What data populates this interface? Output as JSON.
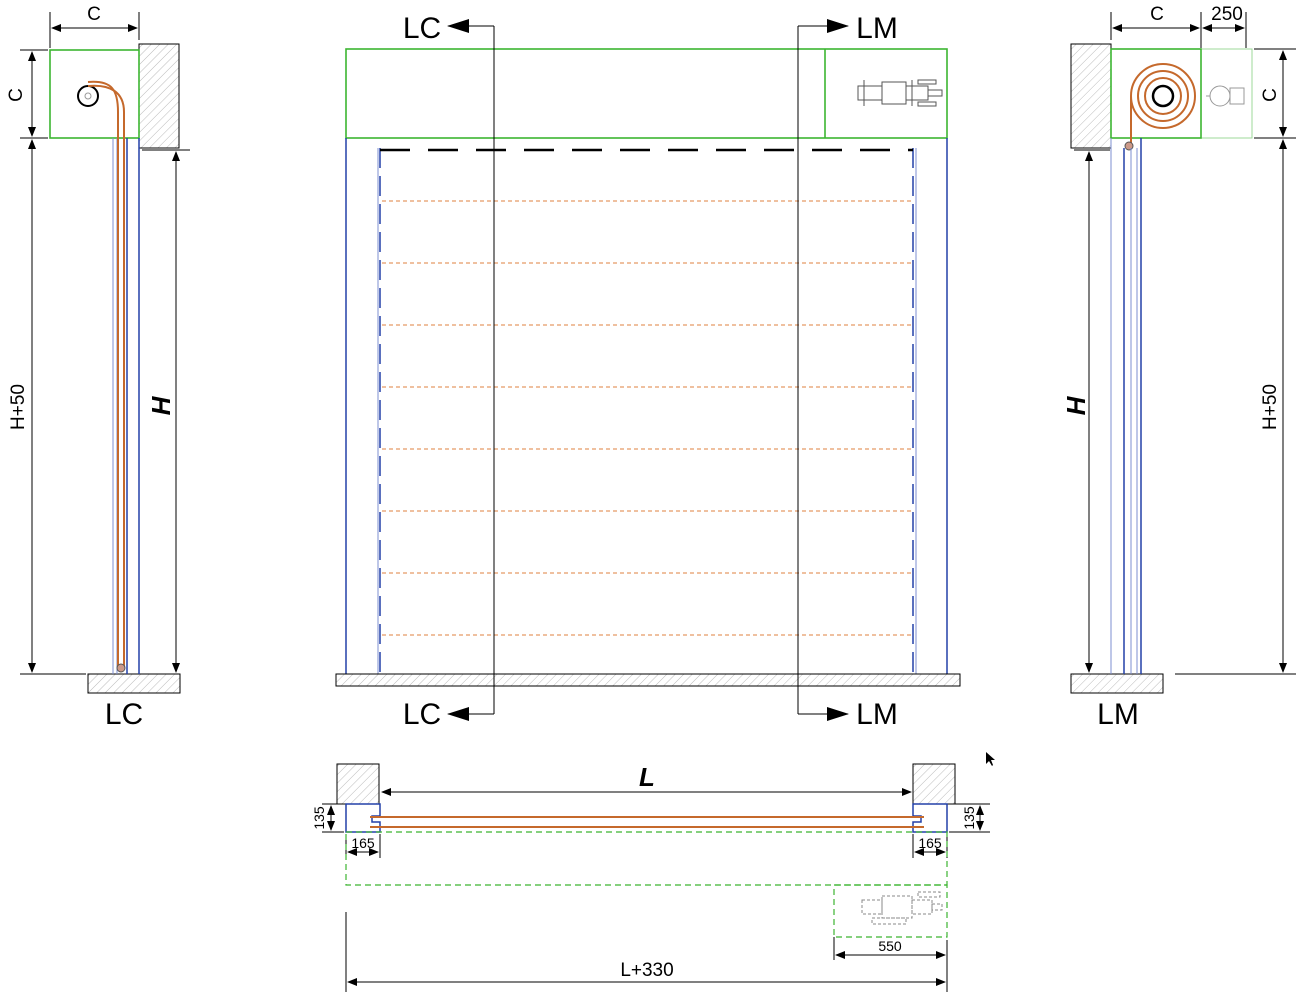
{
  "labels": {
    "section_lc": "LC",
    "section_lm": "LM",
    "dim_c": "C",
    "dim_250": "250",
    "dim_h50": "H+50",
    "dim_h": "H",
    "dim_l": "L",
    "dim_135": "135",
    "dim_165": "165",
    "dim_550": "550",
    "dim_l330": "L+330"
  },
  "colors": {
    "frame": "#3cb531",
    "guide": "#2340a8",
    "curtain": "#c5692c"
  },
  "icons": [
    "motor-icon",
    "cursor-icon"
  ]
}
